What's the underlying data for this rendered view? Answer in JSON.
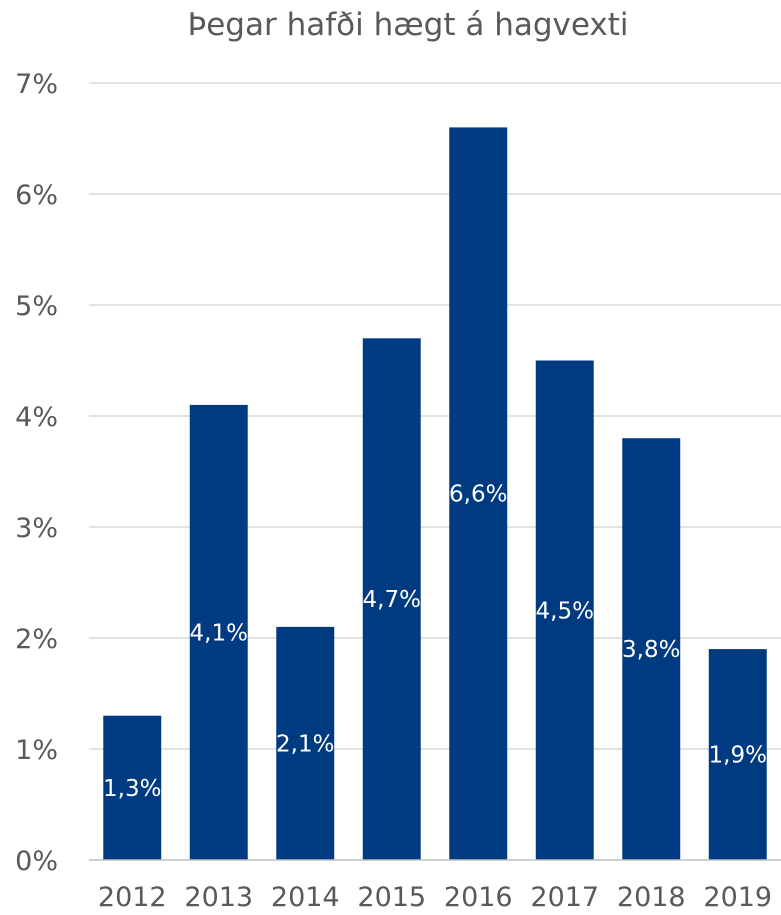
{
  "chart_data": {
    "type": "bar",
    "title": "Þegar hafði hægt á hagvexti",
    "xlabel": "",
    "ylabel": "",
    "categories": [
      "2012",
      "2013",
      "2014",
      "2015",
      "2016",
      "2017",
      "2018",
      "2019"
    ],
    "values": [
      1.3,
      4.1,
      2.1,
      4.7,
      6.6,
      4.5,
      3.8,
      1.9
    ],
    "data_labels": [
      "1,3%",
      "4,1%",
      "2,1%",
      "4,7%",
      "6,6%",
      "4,5%",
      "3,8%",
      "1,9%"
    ],
    "ylim": [
      0,
      7
    ],
    "yticks": [
      0,
      1,
      2,
      3,
      4,
      5,
      6,
      7
    ],
    "ytick_labels": [
      "0%",
      "1%",
      "2%",
      "3%",
      "4%",
      "5%",
      "6%",
      "7%"
    ],
    "grid": true,
    "legend": "none",
    "bar_color": "#003A80",
    "label_color": "#FFFFFF"
  }
}
